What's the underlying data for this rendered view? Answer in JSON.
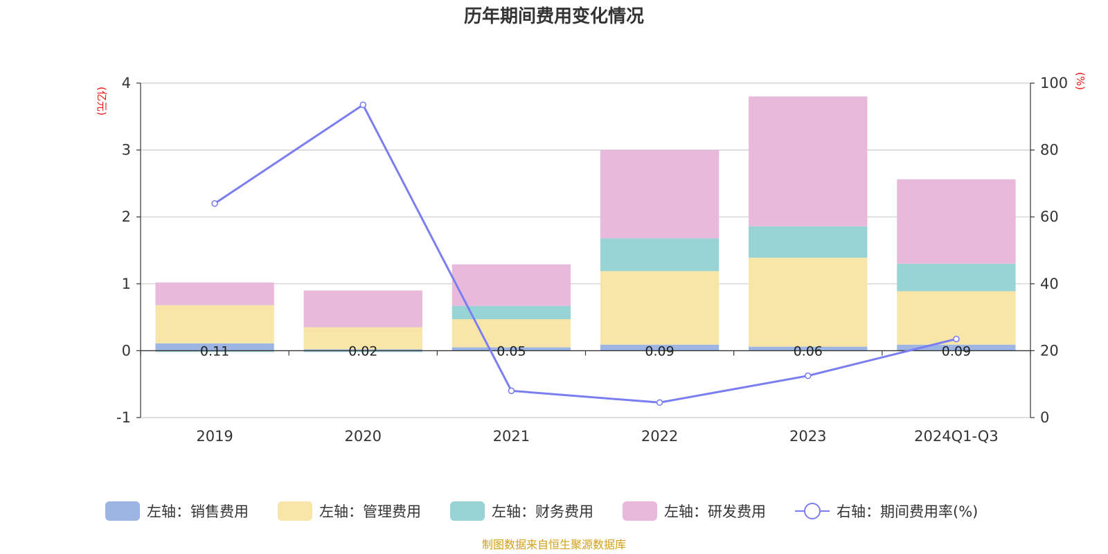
{
  "title": "历年期间费用变化情况",
  "source": "制图数据来自恒生聚源数据库",
  "chart_data": {
    "type": "bar",
    "stacked": true,
    "categories": [
      "2019",
      "2020",
      "2021",
      "2022",
      "2023",
      "2024Q1-Q3"
    ],
    "left_axis": {
      "unit": "(亿元)",
      "ylim": [
        -1,
        4
      ],
      "ticks": [
        "-1",
        "0",
        "1",
        "2",
        "3",
        "4"
      ]
    },
    "right_axis": {
      "unit": "(%)",
      "ylim": [
        0,
        100
      ],
      "ticks": [
        "0",
        "20",
        "40",
        "60",
        "80",
        "100"
      ]
    },
    "grid": true,
    "legend_position": "bottom",
    "series": [
      {
        "name": "左轴：销售费用",
        "axis": "left",
        "type": "bar",
        "color": "#9db5e3",
        "values": [
          0.11,
          0.02,
          0.05,
          0.09,
          0.06,
          0.09
        ],
        "labels": [
          "0.11",
          "0.02",
          "0.05",
          "0.09",
          "0.06",
          "0.09"
        ]
      },
      {
        "name": "左轴：管理费用",
        "axis": "left",
        "type": "bar",
        "color": "#f8e6a9",
        "values": [
          0.57,
          0.33,
          0.42,
          1.1,
          1.33,
          0.8
        ]
      },
      {
        "name": "左轴：财务费用",
        "axis": "left",
        "type": "bar",
        "color": "#98d4d6",
        "values": [
          -0.02,
          -0.02,
          0.2,
          0.49,
          0.47,
          0.41
        ]
      },
      {
        "name": "左轴：研发费用",
        "axis": "left",
        "type": "bar",
        "color": "#e8b9da",
        "values": [
          0.34,
          0.55,
          0.62,
          1.32,
          1.94,
          1.26
        ]
      },
      {
        "name": "右轴：期间费用率(%)",
        "axis": "right",
        "type": "line",
        "color": "#7b7ef0",
        "values": [
          64,
          93.5,
          8,
          4.5,
          12.5,
          23.5
        ]
      }
    ]
  }
}
